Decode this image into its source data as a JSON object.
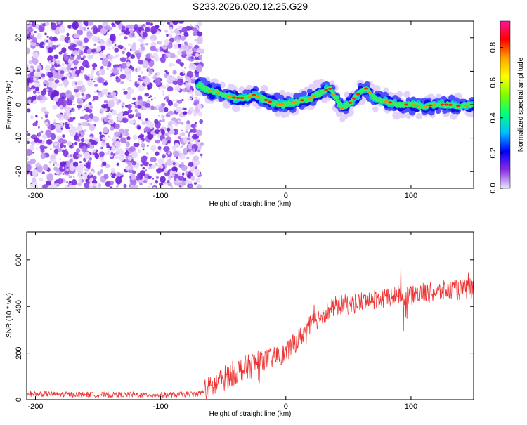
{
  "title": "S233.2026.020.12.25.G29",
  "chart_data": [
    {
      "type": "heatmap",
      "xlabel": "Height of straight line (km)",
      "ylabel": "Frequency (Hz)",
      "xlim": [
        -207,
        150
      ],
      "ylim": [
        -25,
        25
      ],
      "xticks": [
        -200,
        -100,
        0,
        100
      ],
      "yticks": [
        -20,
        -10,
        0,
        10,
        20
      ],
      "noise_region_x": [
        -207,
        -65
      ],
      "ridge": {
        "x": [
          -70,
          -60,
          -50,
          -40,
          -30,
          -25,
          -20,
          -10,
          0,
          10,
          20,
          30,
          35,
          40,
          45,
          50,
          55,
          60,
          65,
          70,
          80,
          90,
          100,
          110,
          120,
          130,
          140,
          150
        ],
        "freq": [
          6,
          4,
          3,
          2,
          2,
          3,
          2,
          0.5,
          0,
          1,
          2,
          4,
          5,
          2,
          -1,
          0,
          2,
          4,
          5,
          2,
          1,
          0,
          0,
          -0.5,
          0,
          0,
          -0.5,
          0
        ]
      },
      "colorbar": {
        "label": "Normalized spectral amplitude",
        "range": [
          0,
          0.95
        ],
        "ticks": [
          "0.0",
          "0.2",
          "0.4",
          "0.6",
          "0.8"
        ],
        "colors": [
          "#e6e6fa",
          "#8a2be2",
          "#0000ff",
          "#00bfff",
          "#00ff7f",
          "#7cfc00",
          "#ffff00",
          "#ffa500",
          "#ff0000",
          "#ff1493"
        ]
      }
    },
    {
      "type": "line",
      "xlabel": "Height of straight line (km)",
      "ylabel": "SNR (10 * v/v)",
      "xlim": [
        -207,
        150
      ],
      "ylim": [
        0,
        720
      ],
      "xticks": [
        -200,
        -100,
        0,
        100
      ],
      "yticks": [
        0,
        200,
        400,
        600
      ],
      "color": "#ee3333",
      "envelope": {
        "x": [
          -207,
          -160,
          -100,
          -70,
          -60,
          -50,
          -40,
          -30,
          -20,
          -10,
          0,
          10,
          20,
          30,
          40,
          50,
          60,
          70,
          80,
          90,
          100,
          110,
          120,
          130,
          140,
          150
        ],
        "y": [
          25,
          22,
          20,
          25,
          50,
          90,
          120,
          140,
          170,
          180,
          200,
          260,
          320,
          370,
          400,
          410,
          420,
          430,
          440,
          450,
          450,
          460,
          460,
          470,
          470,
          480
        ]
      }
    }
  ]
}
